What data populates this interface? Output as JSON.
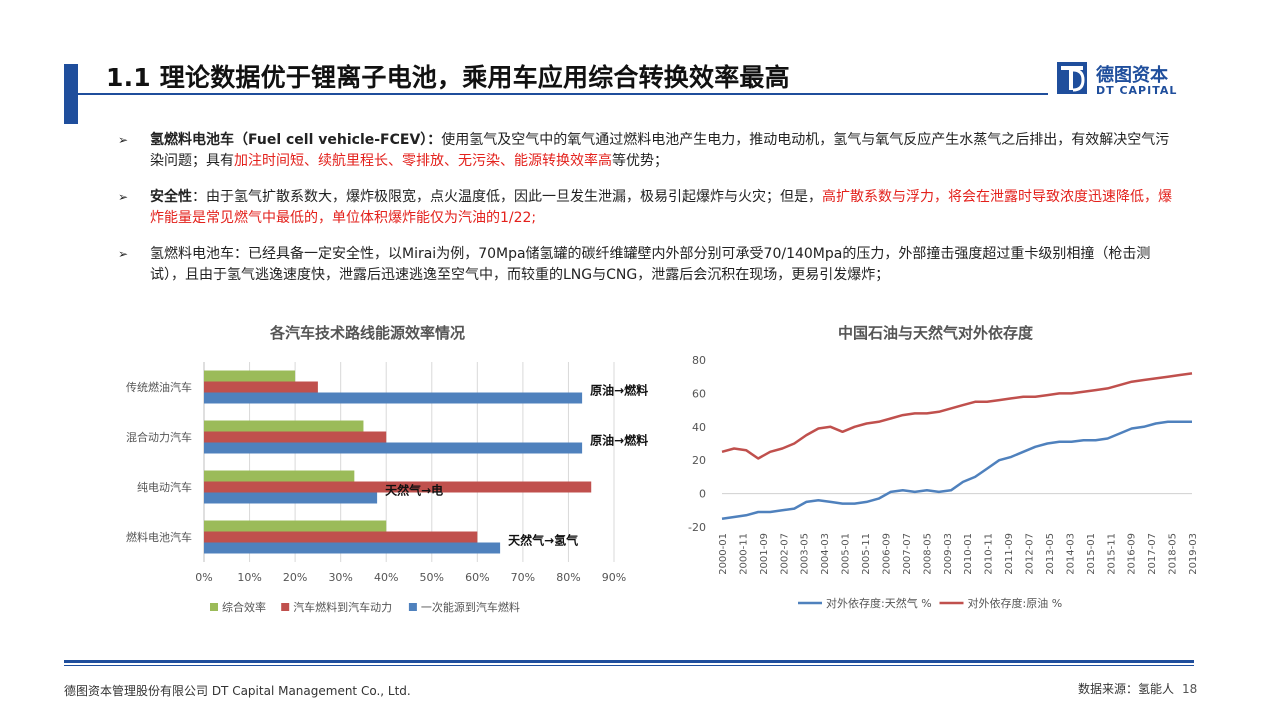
{
  "header": {
    "title": "1.1 理论数据优于锂离子电池，乘用车应用综合转换效率最高",
    "logo_cn": "德图资本",
    "logo_en": "DT CAPITAL",
    "accent_color": "#1f4e9c"
  },
  "bullets": [
    {
      "segments": [
        {
          "text": "氢燃料电池车（Fuel cell vehicle-FCEV）：",
          "style": "bold"
        },
        {
          "text": "使用氢气及空气中的氧气通过燃料电池产生电力，推动电动机，氢气与氧气反应产生水蒸气之后排出，有效解决空气污染问题；具有",
          "style": "normal"
        },
        {
          "text": "加注时间短、续航里程长、零排放、无污染、能源转换效率高",
          "style": "red"
        },
        {
          "text": "等优势；",
          "style": "normal"
        }
      ]
    },
    {
      "segments": [
        {
          "text": "安全性",
          "style": "bold"
        },
        {
          "text": "：由于氢气扩散系数大，爆炸极限宽，点火温度低，因此一旦发生泄漏，极易引起爆炸与火灾；但是，",
          "style": "normal"
        },
        {
          "text": "高扩散系数与浮力，将会在泄露时导致浓度迅速降低，爆炸能量是常见燃气中最低的，单位体积爆炸能仅为汽油的1/22;",
          "style": "red"
        }
      ]
    },
    {
      "segments": [
        {
          "text": "氢燃料电池车：已经具备一定安全性，以Mirai为例，70Mpa储氢罐的碳纤维罐壁内外部分别可承受70/140Mpa的压力，外部撞击强度超过重卡级别相撞（枪击测试），且由于氢气逃逸速度快，泄露后迅速逃逸至空气中，而较重的LNG与CNG，泄露后会沉积在现场，更易引发爆炸；",
          "style": "normal"
        }
      ]
    }
  ],
  "chart_data": [
    {
      "type": "bar",
      "orientation": "horizontal",
      "title": "各汽车技术路线能源效率情况",
      "categories": [
        "传统燃油汽车",
        "混合动力汽车",
        "纯电动汽车",
        "燃料电池汽车"
      ],
      "series": [
        {
          "name": "综合效率",
          "color": "#9bbb59",
          "values": [
            0.2,
            0.35,
            0.33,
            0.4
          ]
        },
        {
          "name": "汽车燃料到汽车动力",
          "color": "#c0504d",
          "values": [
            0.25,
            0.4,
            0.85,
            0.6
          ]
        },
        {
          "name": "一次能源到汽车燃料",
          "color": "#4f81bd",
          "values": [
            0.83,
            0.83,
            0.38,
            0.65
          ]
        }
      ],
      "annotations": [
        "原油→燃料",
        "原油→燃料",
        "天然气→电",
        "天然气→氢气"
      ],
      "xlim": [
        0,
        0.9
      ],
      "xticks": [
        "0%",
        "10%",
        "20%",
        "30%",
        "40%",
        "50%",
        "60%",
        "70%",
        "80%",
        "90%"
      ],
      "grid": true,
      "legend_position": "bottom"
    },
    {
      "type": "line",
      "title": "中国石油与天然气对外依存度",
      "x": [
        "2000-01",
        "2000-07",
        "2001-01",
        "2001-07",
        "2002-01",
        "2002-07",
        "2003-01",
        "2003-07",
        "2004-01",
        "2004-07",
        "2005-01",
        "2005-07",
        "2006-01",
        "2006-07",
        "2007-01",
        "2007-07",
        "2008-01",
        "2008-07",
        "2009-01",
        "2009-07",
        "2010-01",
        "2010-07",
        "2011-01",
        "2011-07",
        "2012-01",
        "2012-07",
        "2013-01",
        "2013-07",
        "2014-01",
        "2014-07",
        "2015-01",
        "2015-07",
        "2016-01",
        "2016-07",
        "2017-01",
        "2017-07",
        "2018-01",
        "2018-07",
        "2019-01",
        "2019-07"
      ],
      "xticks": [
        "2000-01",
        "2000-11",
        "2001-09",
        "2002-07",
        "2003-05",
        "2004-03",
        "2005-01",
        "2005-11",
        "2006-09",
        "2007-07",
        "2008-05",
        "2009-03",
        "2010-01",
        "2010-11",
        "2011-09",
        "2012-07",
        "2013-05",
        "2014-03",
        "2015-01",
        "2015-11",
        "2016-09",
        "2017-07",
        "2018-05",
        "2019-03"
      ],
      "series": [
        {
          "name": "对外依存度:天然气 %",
          "color": "#4f81bd",
          "values": [
            -15,
            -14,
            -13,
            -11,
            -11,
            -10,
            -9,
            -5,
            -4,
            -5,
            -6,
            -6,
            -5,
            -3,
            1,
            2,
            1,
            2,
            1,
            2,
            7,
            10,
            15,
            20,
            22,
            25,
            28,
            30,
            31,
            31,
            32,
            32,
            33,
            36,
            39,
            40,
            42,
            43,
            43,
            43
          ]
        },
        {
          "name": "对外依存度:原油 %",
          "color": "#c0504d",
          "values": [
            25,
            27,
            26,
            21,
            25,
            27,
            30,
            35,
            39,
            40,
            37,
            40,
            42,
            43,
            45,
            47,
            48,
            48,
            49,
            51,
            53,
            55,
            55,
            56,
            57,
            58,
            58,
            59,
            60,
            60,
            61,
            62,
            63,
            65,
            67,
            68,
            69,
            70,
            71,
            72
          ]
        }
      ],
      "ylim": [
        -20,
        80
      ],
      "yticks": [
        "-20",
        "0",
        "20",
        "40",
        "60",
        "80"
      ],
      "grid": false,
      "legend_position": "bottom"
    }
  ],
  "footer": {
    "company": "德图资本管理股份有限公司  DT Capital Management  Co., Ltd.",
    "source": "数据来源：氢能人",
    "page": "18"
  }
}
